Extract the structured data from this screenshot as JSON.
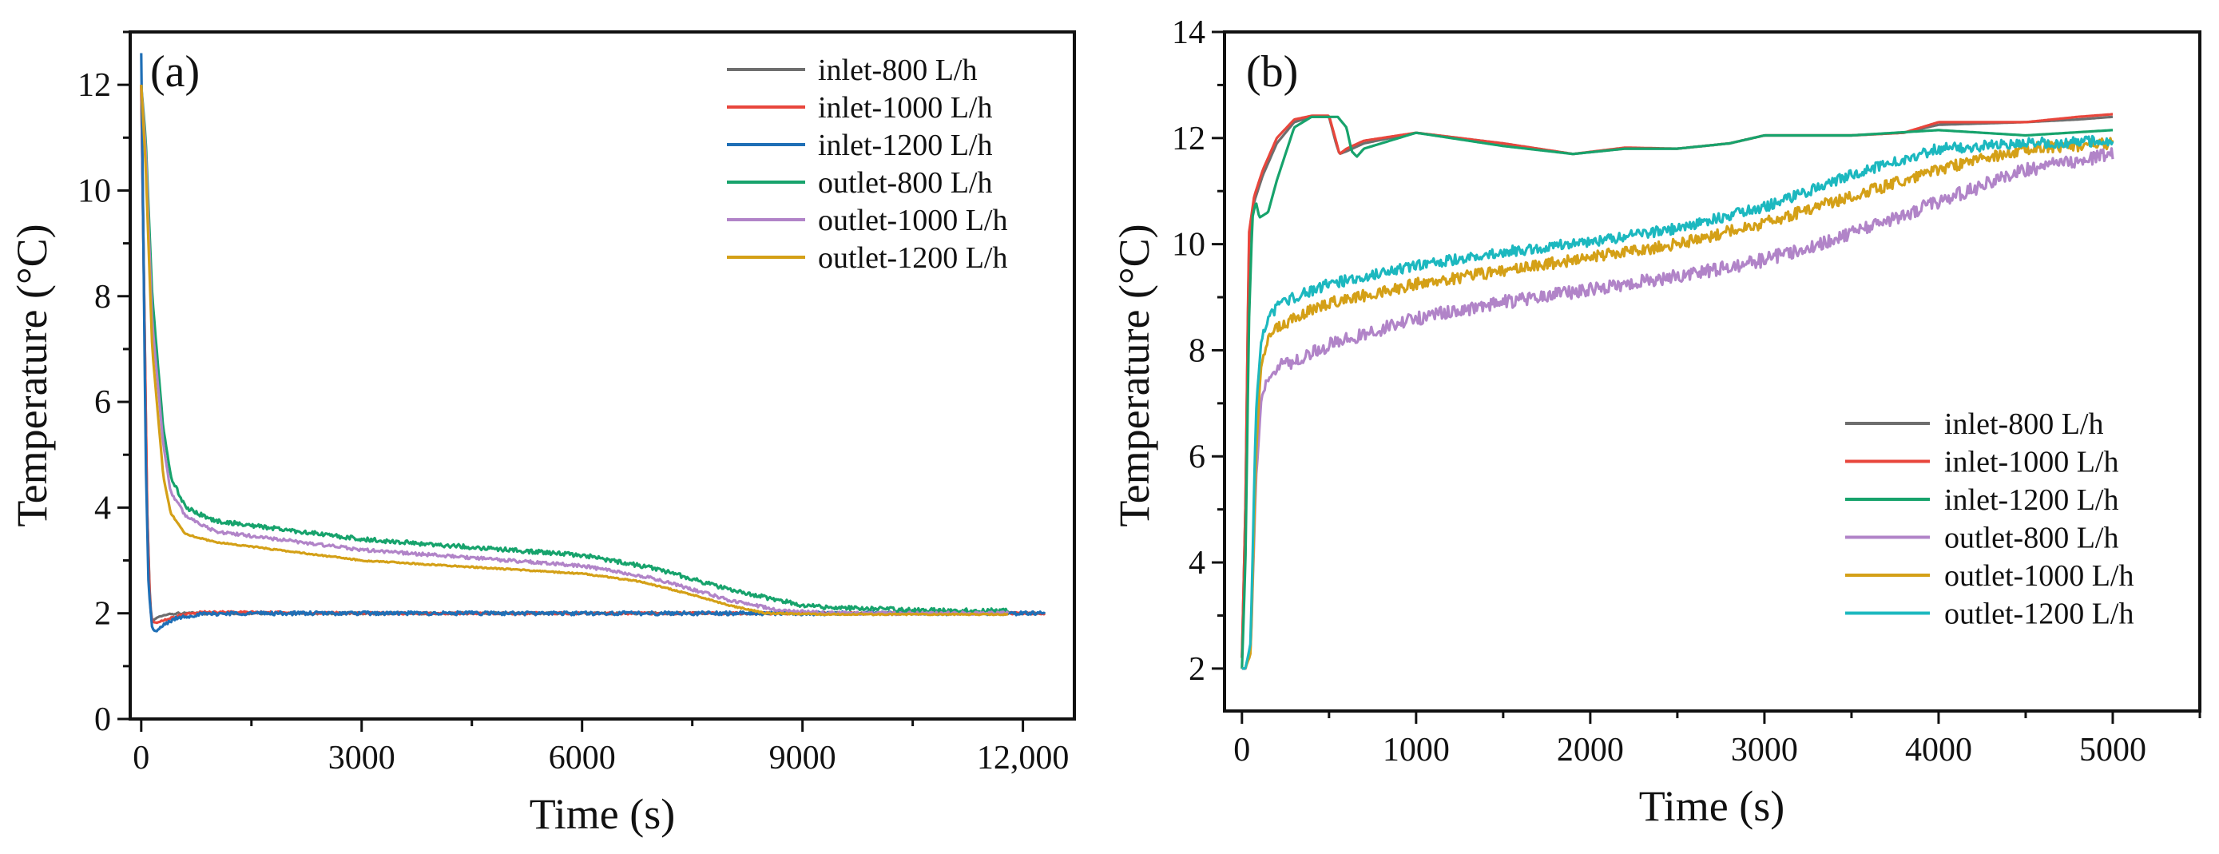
{
  "figure": {
    "panels": [
      "(a)",
      "(b)"
    ]
  },
  "chart_data": [
    {
      "type": "line",
      "panel_label": "(a)",
      "xlabel": "Time (s)",
      "ylabel": "Temperature (°C)",
      "xlim": [
        -150,
        12700
      ],
      "ylim": [
        0,
        13
      ],
      "xticks": [
        0,
        3000,
        6000,
        9000,
        12000
      ],
      "xtick_labels": [
        "0",
        "3000",
        "6000",
        "9000",
        "12,000"
      ],
      "yticks": [
        0,
        2,
        4,
        6,
        8,
        10,
        12
      ],
      "ytick_labels": [
        "0",
        "2",
        "4",
        "6",
        "8",
        "10",
        "12"
      ],
      "legend_position": "top-right",
      "series": [
        {
          "name": "inlet-800 L/h",
          "color": "#6e6e6e",
          "noise": 0.02,
          "x": [
            0,
            40,
            80,
            120,
            150,
            200,
            300,
            500,
            800,
            1200,
            3000,
            6000,
            9000,
            11000,
            12300
          ],
          "y": [
            12.0,
            8.0,
            4.0,
            2.2,
            1.85,
            1.9,
            1.97,
            2.0,
            2.0,
            2.0,
            2.0,
            2.0,
            2.0,
            2.0,
            2.0
          ]
        },
        {
          "name": "inlet-1000 L/h",
          "color": "#e8463c",
          "noise": 0.02,
          "x": [
            0,
            40,
            80,
            120,
            150,
            200,
            300,
            500,
            800,
            1200,
            3000,
            6000,
            9000,
            11000,
            12300
          ],
          "y": [
            12.0,
            8.0,
            4.0,
            2.1,
            1.85,
            1.82,
            1.87,
            1.95,
            2.02,
            2.02,
            2.0,
            2.0,
            2.0,
            2.0,
            2.0
          ]
        },
        {
          "name": "inlet-1200 L/h",
          "color": "#1f6fb6",
          "noise": 0.035,
          "x": [
            0,
            30,
            60,
            100,
            150,
            200,
            300,
            500,
            800,
            1200,
            3000,
            6000,
            9000,
            11000,
            12300
          ],
          "y": [
            12.6,
            9.0,
            5.0,
            2.5,
            1.7,
            1.65,
            1.78,
            1.92,
            1.98,
            2.0,
            2.0,
            2.0,
            2.0,
            2.0,
            2.0
          ]
        },
        {
          "name": "outlet-800 L/h",
          "color": "#17a36c",
          "noise": 0.04,
          "x": [
            0,
            60,
            150,
            300,
            400,
            600,
            1000,
            3000,
            6000,
            7000,
            7500,
            8000,
            9000,
            9500,
            11000,
            11800
          ],
          "y": [
            12.0,
            11.0,
            8.0,
            5.5,
            4.6,
            4.0,
            3.75,
            3.4,
            3.1,
            2.85,
            2.65,
            2.45,
            2.15,
            2.1,
            2.05,
            2.05
          ]
        },
        {
          "name": "outlet-1000 L/h",
          "color": "#b184c8",
          "noise": 0.03,
          "x": [
            0,
            60,
            150,
            300,
            400,
            600,
            1000,
            3000,
            6000,
            7000,
            7500,
            8000,
            8700,
            9500,
            11000,
            11800
          ],
          "y": [
            12.0,
            10.8,
            7.5,
            5.2,
            4.3,
            3.85,
            3.55,
            3.2,
            2.9,
            2.65,
            2.45,
            2.25,
            2.05,
            2.0,
            2.0,
            2.0
          ]
        },
        {
          "name": "outlet-1200 L/h",
          "color": "#d4a017",
          "noise": 0.012,
          "x": [
            0,
            60,
            150,
            300,
            400,
            600,
            1000,
            3000,
            6000,
            6800,
            7500,
            8000,
            8500,
            9500,
            11000,
            11800
          ],
          "y": [
            12.0,
            10.5,
            7.0,
            4.6,
            3.9,
            3.5,
            3.35,
            3.0,
            2.75,
            2.6,
            2.35,
            2.15,
            2.0,
            1.98,
            1.98,
            1.98
          ]
        }
      ]
    },
    {
      "type": "line",
      "panel_label": "(b)",
      "xlabel": "Time (s)",
      "ylabel": "Temperature (°C)",
      "xlim": [
        -100,
        5500
      ],
      "ylim": [
        1.2,
        14
      ],
      "xticks": [
        0,
        1000,
        2000,
        3000,
        4000,
        5000
      ],
      "xtick_labels": [
        "0",
        "1000",
        "2000",
        "3000",
        "4000",
        "5000"
      ],
      "yticks": [
        2,
        4,
        6,
        8,
        10,
        12,
        14
      ],
      "ytick_labels": [
        "2",
        "4",
        "6",
        "8",
        "10",
        "12",
        "14"
      ],
      "legend_position": "bottom-right",
      "series": [
        {
          "name": "inlet-800 L/h",
          "color": "#6e6e6e",
          "noise": 0.0,
          "x": [
            0,
            20,
            40,
            70,
            120,
            200,
            300,
            400,
            500,
            540,
            560,
            600,
            700,
            1000,
            1500,
            1900,
            2200,
            2500,
            2800,
            3000,
            3500,
            3800,
            4000,
            4500,
            4800,
            5000
          ],
          "y": [
            2.2,
            5.0,
            10.0,
            10.8,
            11.3,
            11.9,
            12.3,
            12.4,
            12.4,
            11.9,
            11.7,
            11.75,
            11.9,
            12.1,
            11.9,
            11.7,
            11.8,
            11.8,
            11.9,
            12.05,
            12.05,
            12.1,
            12.25,
            12.3,
            12.35,
            12.4
          ]
        },
        {
          "name": "inlet-1000 L/h",
          "color": "#e8463c",
          "noise": 0.0,
          "x": [
            0,
            20,
            40,
            70,
            120,
            200,
            300,
            400,
            500,
            540,
            560,
            600,
            700,
            1000,
            1500,
            1900,
            2200,
            2500,
            2800,
            3000,
            3500,
            3800,
            4000,
            4500,
            4800,
            5000
          ],
          "y": [
            2.2,
            5.0,
            10.2,
            10.9,
            11.4,
            12.0,
            12.35,
            12.42,
            12.42,
            11.95,
            11.7,
            11.8,
            11.95,
            12.1,
            11.9,
            11.7,
            11.82,
            11.8,
            11.9,
            12.05,
            12.05,
            12.1,
            12.3,
            12.3,
            12.4,
            12.45
          ]
        },
        {
          "name": "inlet-1200 L/h",
          "color": "#17a36c",
          "noise": 0.0,
          "x": [
            0,
            20,
            40,
            60,
            80,
            100,
            150,
            200,
            300,
            400,
            550,
            600,
            630,
            660,
            700,
            1000,
            1500,
            1900,
            2200,
            2500,
            2800,
            3000,
            3500,
            4000,
            4500,
            5000
          ],
          "y": [
            2.0,
            4.0,
            8.5,
            10.5,
            10.8,
            10.5,
            10.6,
            11.2,
            12.2,
            12.4,
            12.4,
            12.2,
            11.75,
            11.65,
            11.8,
            12.1,
            11.85,
            11.7,
            11.8,
            11.8,
            11.9,
            12.05,
            12.05,
            12.15,
            12.05,
            12.15
          ]
        },
        {
          "name": "outlet-800 L/h",
          "color": "#b184c8",
          "noise": 0.13,
          "x": [
            0,
            20,
            50,
            80,
            110,
            150,
            200,
            300,
            500,
            800,
            1000,
            1500,
            2000,
            2500,
            3000,
            3500,
            4000,
            4500,
            5000
          ],
          "y": [
            2.0,
            2.0,
            2.3,
            5.5,
            7.0,
            7.5,
            7.7,
            7.8,
            8.1,
            8.4,
            8.6,
            8.9,
            9.15,
            9.4,
            9.7,
            10.2,
            10.8,
            11.4,
            11.7
          ]
        },
        {
          "name": "outlet-1000 L/h",
          "color": "#d4a017",
          "noise": 0.11,
          "x": [
            0,
            20,
            50,
            80,
            110,
            150,
            200,
            300,
            500,
            800,
            1000,
            1500,
            2000,
            2500,
            3000,
            3500,
            4000,
            4500,
            5000
          ],
          "y": [
            2.0,
            2.0,
            2.3,
            6.0,
            7.7,
            8.2,
            8.4,
            8.6,
            8.9,
            9.1,
            9.25,
            9.5,
            9.75,
            10.0,
            10.4,
            10.9,
            11.4,
            11.8,
            11.9
          ]
        },
        {
          "name": "outlet-1200 L/h",
          "color": "#1cb8bf",
          "noise": 0.1,
          "x": [
            0,
            20,
            50,
            80,
            110,
            150,
            200,
            300,
            500,
            800,
            1000,
            1500,
            2000,
            2500,
            3000,
            3500,
            4000,
            4500,
            5000
          ],
          "y": [
            2.0,
            2.0,
            2.5,
            6.8,
            8.2,
            8.6,
            8.8,
            9.0,
            9.25,
            9.45,
            9.6,
            9.85,
            10.05,
            10.3,
            10.7,
            11.3,
            11.8,
            11.9,
            11.95
          ]
        }
      ]
    }
  ]
}
